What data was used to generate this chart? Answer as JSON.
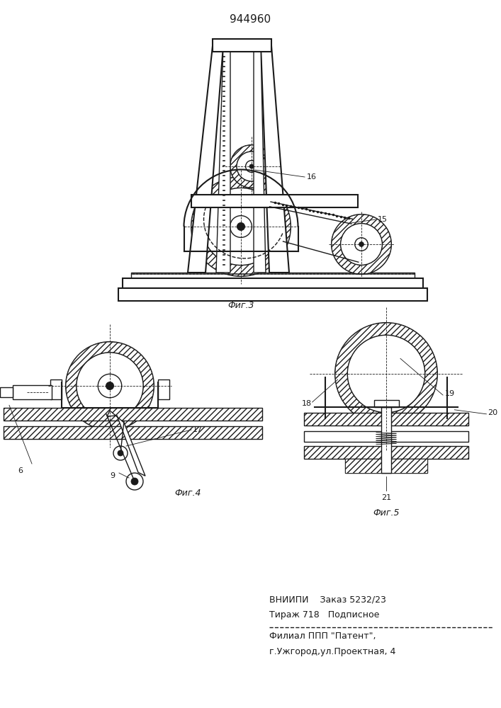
{
  "title": "944960",
  "fig3_caption": "Фиг.3",
  "fig4_caption": "Фиг.4",
  "fig5_caption": "Фиг.5",
  "footer_line1": "ВНИИПИ    Заказ 5232/23",
  "footer_line2": "Тираж 718   Подписное",
  "footer_line3": "Филиал ППП \"Патент\",",
  "footer_line4": "г.Ужгород,ул.Проектная, 4",
  "bg_color": "#ffffff",
  "line_color": "#1a1a1a"
}
